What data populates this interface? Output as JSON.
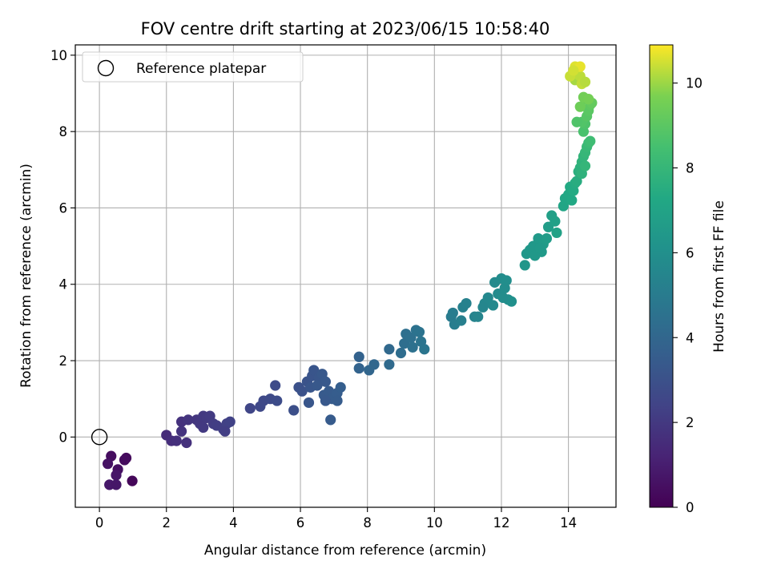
{
  "chart_data": {
    "type": "scatter",
    "title": "FOV centre drift starting at 2023/06/15 10:58:40",
    "xlabel": "Angular distance from reference (arcmin)",
    "ylabel": "Rotation from reference (arcmin)",
    "xlim": [
      -0.72,
      15.42
    ],
    "ylim": [
      -1.84,
      10.27
    ],
    "x_ticks": [
      0,
      2,
      4,
      6,
      8,
      10,
      12,
      14
    ],
    "y_ticks": [
      0,
      2,
      4,
      6,
      8,
      10
    ],
    "grid": true,
    "legend": {
      "placement": "top-left",
      "entries": [
        "Reference platepar"
      ]
    },
    "colorbar": {
      "label": "Hours from first FF file",
      "range": [
        0,
        10.9
      ],
      "ticks": [
        0,
        2,
        4,
        6,
        8,
        10
      ],
      "colormap": "viridis"
    },
    "reference_point": {
      "x": 0,
      "y": 0
    },
    "points": [
      [
        0.35,
        -0.5,
        0.4
      ],
      [
        0.8,
        -0.55,
        0.3
      ],
      [
        0.75,
        -0.6,
        0.35
      ],
      [
        0.25,
        -0.7,
        0.6
      ],
      [
        0.55,
        -0.85,
        0.5
      ],
      [
        0.5,
        -1.0,
        0.7
      ],
      [
        0.3,
        -1.25,
        0.8
      ],
      [
        0.5,
        -1.25,
        0.75
      ],
      [
        0.98,
        -1.15,
        0.2
      ],
      [
        2.0,
        0.05,
        1.5
      ],
      [
        2.15,
        -0.1,
        1.6
      ],
      [
        2.3,
        -0.1,
        1.65
      ],
      [
        2.45,
        0.15,
        1.8
      ],
      [
        2.6,
        -0.15,
        1.7
      ],
      [
        2.45,
        0.4,
        1.75
      ],
      [
        2.65,
        0.45,
        1.85
      ],
      [
        2.9,
        0.45,
        1.9
      ],
      [
        3.0,
        0.35,
        1.95
      ],
      [
        3.1,
        0.55,
        2.0
      ],
      [
        3.2,
        0.5,
        2.05
      ],
      [
        3.3,
        0.55,
        2.1
      ],
      [
        3.1,
        0.25,
        2.0
      ],
      [
        3.4,
        0.35,
        2.15
      ],
      [
        3.5,
        0.3,
        2.2
      ],
      [
        3.7,
        0.2,
        2.25
      ],
      [
        3.8,
        0.35,
        2.3
      ],
      [
        3.9,
        0.4,
        2.35
      ],
      [
        3.75,
        0.15,
        2.2
      ],
      [
        4.5,
        0.75,
        2.5
      ],
      [
        4.8,
        0.8,
        2.6
      ],
      [
        4.9,
        0.95,
        2.65
      ],
      [
        5.1,
        1.0,
        2.7
      ],
      [
        5.25,
        1.35,
        2.75
      ],
      [
        5.3,
        0.95,
        2.8
      ],
      [
        5.8,
        0.7,
        2.9
      ],
      [
        5.95,
        1.3,
        3.0
      ],
      [
        6.05,
        1.2,
        3.05
      ],
      [
        6.2,
        1.45,
        3.1
      ],
      [
        6.35,
        1.6,
        3.15
      ],
      [
        6.4,
        1.75,
        3.2
      ],
      [
        6.55,
        1.55,
        3.25
      ],
      [
        6.65,
        1.65,
        3.3
      ],
      [
        6.75,
        1.45,
        3.35
      ],
      [
        6.3,
        1.3,
        3.25
      ],
      [
        6.5,
        1.35,
        3.3
      ],
      [
        6.7,
        1.1,
        3.4
      ],
      [
        6.85,
        1.2,
        3.45
      ],
      [
        6.95,
        1.0,
        3.5
      ],
      [
        7.1,
        1.15,
        3.55
      ],
      [
        7.2,
        1.3,
        3.6
      ],
      [
        7.1,
        0.95,
        3.5
      ],
      [
        6.25,
        0.9,
        3.25
      ],
      [
        6.75,
        0.95,
        3.35
      ],
      [
        6.9,
        0.45,
        3.45
      ],
      [
        7.75,
        2.1,
        3.8
      ],
      [
        7.75,
        1.8,
        3.85
      ],
      [
        8.05,
        1.75,
        3.95
      ],
      [
        8.2,
        1.9,
        4.0
      ],
      [
        8.65,
        2.3,
        4.1
      ],
      [
        8.65,
        1.9,
        4.15
      ],
      [
        9.0,
        2.2,
        4.3
      ],
      [
        9.1,
        2.45,
        4.35
      ],
      [
        9.15,
        2.7,
        4.4
      ],
      [
        9.3,
        2.6,
        4.45
      ],
      [
        9.45,
        2.8,
        4.55
      ],
      [
        9.55,
        2.75,
        4.6
      ],
      [
        9.6,
        2.5,
        4.65
      ],
      [
        9.7,
        2.3,
        4.7
      ],
      [
        9.35,
        2.35,
        4.5
      ],
      [
        10.5,
        3.15,
        5.0
      ],
      [
        10.55,
        3.25,
        5.05
      ],
      [
        10.6,
        2.95,
        5.1
      ],
      [
        10.8,
        3.05,
        5.2
      ],
      [
        10.85,
        3.4,
        5.25
      ],
      [
        10.95,
        3.5,
        5.3
      ],
      [
        11.2,
        3.15,
        5.4
      ],
      [
        11.3,
        3.15,
        5.45
      ],
      [
        11.5,
        3.5,
        5.55
      ],
      [
        11.6,
        3.65,
        5.6
      ],
      [
        11.75,
        3.45,
        5.65
      ],
      [
        11.8,
        4.05,
        5.7
      ],
      [
        11.9,
        3.75,
        5.75
      ],
      [
        12.0,
        4.15,
        5.8
      ],
      [
        12.1,
        3.9,
        5.85
      ],
      [
        12.15,
        4.1,
        5.9
      ],
      [
        12.2,
        3.6,
        5.95
      ],
      [
        12.3,
        3.55,
        6.0
      ],
      [
        11.45,
        3.4,
        5.5
      ],
      [
        12.05,
        3.65,
        5.85
      ],
      [
        12.7,
        4.5,
        6.3
      ],
      [
        12.75,
        4.8,
        6.35
      ],
      [
        12.85,
        4.9,
        6.4
      ],
      [
        12.95,
        5.0,
        6.45
      ],
      [
        13.1,
        5.2,
        6.5
      ],
      [
        13.2,
        4.85,
        6.55
      ],
      [
        13.25,
        5.05,
        6.6
      ],
      [
        13.35,
        5.2,
        6.65
      ],
      [
        13.4,
        5.5,
        6.7
      ],
      [
        13.5,
        5.8,
        6.8
      ],
      [
        13.6,
        5.65,
        6.85
      ],
      [
        13.65,
        5.35,
        6.9
      ],
      [
        13.0,
        4.75,
        6.45
      ],
      [
        13.15,
        4.95,
        6.5
      ],
      [
        13.85,
        6.05,
        7.1
      ],
      [
        13.9,
        6.25,
        7.15
      ],
      [
        14.0,
        6.35,
        7.2
      ],
      [
        14.05,
        6.55,
        7.3
      ],
      [
        14.1,
        6.2,
        7.25
      ],
      [
        14.15,
        6.45,
        7.35
      ],
      [
        14.2,
        6.65,
        7.4
      ],
      [
        14.25,
        6.7,
        7.5
      ],
      [
        14.3,
        6.95,
        7.6
      ],
      [
        14.35,
        7.05,
        7.7
      ],
      [
        14.4,
        7.2,
        7.8
      ],
      [
        14.45,
        7.35,
        7.9
      ],
      [
        14.5,
        7.45,
        8.0
      ],
      [
        14.55,
        7.6,
        8.1
      ],
      [
        14.6,
        7.7,
        8.2
      ],
      [
        14.65,
        7.75,
        8.3
      ],
      [
        14.4,
        6.9,
        7.75
      ],
      [
        14.5,
        7.1,
        7.95
      ],
      [
        14.45,
        8.0,
        8.6
      ],
      [
        14.5,
        8.2,
        8.7
      ],
      [
        14.4,
        8.25,
        8.8
      ],
      [
        14.55,
        8.4,
        8.9
      ],
      [
        14.6,
        8.55,
        9.0
      ],
      [
        14.65,
        8.7,
        9.1
      ],
      [
        14.7,
        8.75,
        9.2
      ],
      [
        14.5,
        8.85,
        9.3
      ],
      [
        14.35,
        8.65,
        9.4
      ],
      [
        14.45,
        8.9,
        9.5
      ],
      [
        14.6,
        8.85,
        9.55
      ],
      [
        14.25,
        8.25,
        8.75
      ],
      [
        14.2,
        9.35,
        10.1
      ],
      [
        14.25,
        9.5,
        10.2
      ],
      [
        14.35,
        9.45,
        10.3
      ],
      [
        14.4,
        9.25,
        10.35
      ],
      [
        14.05,
        9.45,
        10.4
      ],
      [
        14.2,
        9.7,
        10.6
      ],
      [
        14.35,
        9.7,
        10.7
      ],
      [
        14.15,
        9.6,
        10.5
      ],
      [
        14.5,
        9.3,
        10.25
      ]
    ]
  }
}
